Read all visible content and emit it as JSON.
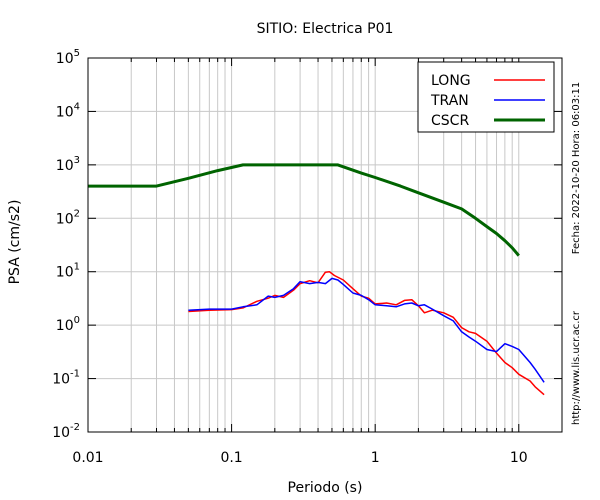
{
  "chart_data": {
    "type": "line",
    "title": "SITIO: Electrica P01",
    "xlabel": "Periodo (s)",
    "ylabel": "PSA (cm/s2)",
    "xscale": "log",
    "yscale": "log",
    "xlim": [
      0.01,
      20
    ],
    "ylim": [
      0.01,
      100000
    ],
    "grid": true,
    "legend_position": "top-right",
    "x_ticks": [
      {
        "value": 0.01,
        "label": "0.01"
      },
      {
        "value": 0.1,
        "label": "0.1"
      },
      {
        "value": 1,
        "label": "1"
      },
      {
        "value": 10,
        "label": "10"
      }
    ],
    "y_ticks": [
      {
        "value": 0.01,
        "base": "10",
        "exp": "-2"
      },
      {
        "value": 0.1,
        "base": "10",
        "exp": "-1"
      },
      {
        "value": 1,
        "base": "10",
        "exp": "0"
      },
      {
        "value": 10,
        "base": "10",
        "exp": "1"
      },
      {
        "value": 100,
        "base": "10",
        "exp": "2"
      },
      {
        "value": 1000,
        "base": "10",
        "exp": "3"
      },
      {
        "value": 10000,
        "base": "10",
        "exp": "4"
      },
      {
        "value": 100000,
        "base": "10",
        "exp": "5"
      }
    ],
    "series": [
      {
        "name": "LONG",
        "color": "#ff0000",
        "line_width": 1.5,
        "points": [
          [
            0.05,
            1.8
          ],
          [
            0.07,
            1.9
          ],
          [
            0.1,
            1.95
          ],
          [
            0.12,
            2.1
          ],
          [
            0.15,
            2.8
          ],
          [
            0.18,
            3.2
          ],
          [
            0.2,
            3.6
          ],
          [
            0.23,
            3.3
          ],
          [
            0.27,
            4.5
          ],
          [
            0.3,
            6.0
          ],
          [
            0.35,
            6.8
          ],
          [
            0.4,
            6.2
          ],
          [
            0.45,
            9.8
          ],
          [
            0.48,
            10.0
          ],
          [
            0.52,
            8.5
          ],
          [
            0.6,
            7.0
          ],
          [
            0.7,
            4.8
          ],
          [
            0.8,
            3.5
          ],
          [
            0.9,
            3.2
          ],
          [
            1.0,
            2.5
          ],
          [
            1.2,
            2.6
          ],
          [
            1.4,
            2.4
          ],
          [
            1.6,
            2.9
          ],
          [
            1.8,
            3.0
          ],
          [
            2.0,
            2.3
          ],
          [
            2.2,
            1.7
          ],
          [
            2.5,
            1.9
          ],
          [
            3.0,
            1.7
          ],
          [
            3.5,
            1.4
          ],
          [
            4.0,
            0.9
          ],
          [
            4.5,
            0.75
          ],
          [
            5.0,
            0.7
          ],
          [
            6.0,
            0.5
          ],
          [
            7.0,
            0.3
          ],
          [
            8.0,
            0.2
          ],
          [
            9.0,
            0.16
          ],
          [
            10.0,
            0.12
          ],
          [
            12.0,
            0.09
          ],
          [
            13.0,
            0.07
          ],
          [
            15.0,
            0.05
          ]
        ]
      },
      {
        "name": "TRAN",
        "color": "#0000ff",
        "line_width": 1.5,
        "points": [
          [
            0.05,
            1.9
          ],
          [
            0.07,
            2.0
          ],
          [
            0.1,
            2.0
          ],
          [
            0.12,
            2.2
          ],
          [
            0.15,
            2.4
          ],
          [
            0.18,
            3.5
          ],
          [
            0.2,
            3.3
          ],
          [
            0.23,
            3.6
          ],
          [
            0.27,
            4.8
          ],
          [
            0.3,
            6.5
          ],
          [
            0.35,
            6.0
          ],
          [
            0.4,
            6.3
          ],
          [
            0.45,
            6.0
          ],
          [
            0.5,
            7.5
          ],
          [
            0.55,
            7.0
          ],
          [
            0.6,
            5.8
          ],
          [
            0.7,
            4.0
          ],
          [
            0.8,
            3.6
          ],
          [
            0.9,
            3.0
          ],
          [
            1.0,
            2.4
          ],
          [
            1.2,
            2.3
          ],
          [
            1.4,
            2.2
          ],
          [
            1.6,
            2.5
          ],
          [
            1.8,
            2.6
          ],
          [
            2.0,
            2.3
          ],
          [
            2.2,
            2.4
          ],
          [
            2.5,
            2.0
          ],
          [
            3.0,
            1.5
          ],
          [
            3.5,
            1.2
          ],
          [
            4.0,
            0.75
          ],
          [
            4.5,
            0.6
          ],
          [
            5.0,
            0.5
          ],
          [
            6.0,
            0.35
          ],
          [
            7.0,
            0.32
          ],
          [
            8.0,
            0.45
          ],
          [
            9.0,
            0.4
          ],
          [
            10.0,
            0.35
          ],
          [
            12.0,
            0.2
          ],
          [
            13.0,
            0.15
          ],
          [
            15.0,
            0.085
          ]
        ]
      },
      {
        "name": "CSCR",
        "color": "#006400",
        "line_width": 3,
        "points": [
          [
            0.01,
            400
          ],
          [
            0.03,
            400
          ],
          [
            0.05,
            560
          ],
          [
            0.08,
            780
          ],
          [
            0.12,
            1000
          ],
          [
            0.2,
            1000
          ],
          [
            0.3,
            1000
          ],
          [
            0.55,
            1000
          ],
          [
            0.8,
            700
          ],
          [
            1.0,
            580
          ],
          [
            1.5,
            400
          ],
          [
            2.0,
            300
          ],
          [
            3.0,
            200
          ],
          [
            4.0,
            150
          ],
          [
            5.0,
            100
          ],
          [
            6.0,
            70
          ],
          [
            7.0,
            52
          ],
          [
            8.0,
            38
          ],
          [
            9.0,
            28
          ],
          [
            10.0,
            20
          ]
        ]
      }
    ]
  },
  "side_text": {
    "date_time": "Fecha: 2022-10-20  Hora: 06:03:11",
    "url": "http://www.lis.ucr.ac.cr"
  }
}
